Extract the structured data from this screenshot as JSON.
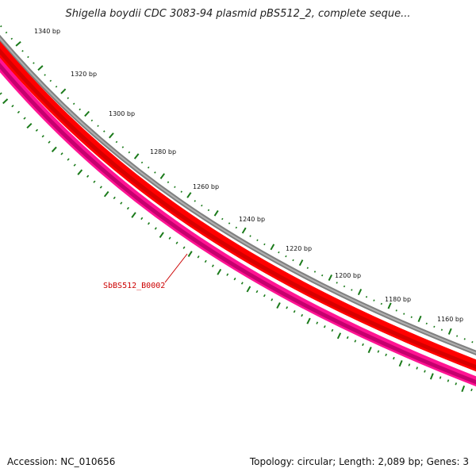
{
  "title": "Shigella boydii CDC 3083-94 plasmid pBS512_2, complete seque...",
  "footer": {
    "accession": "Accession: NC_010656",
    "summary": "Topology: circular; Length: 2,089 bp; Genes: 3"
  },
  "map": {
    "ticks": [
      {
        "label": "1340 bp"
      },
      {
        "label": "1320 bp"
      },
      {
        "label": "1300 bp"
      },
      {
        "label": "1280 bp"
      },
      {
        "label": "1260 bp"
      },
      {
        "label": "1240 bp"
      },
      {
        "label": "1220 bp"
      },
      {
        "label": "1200 bp"
      },
      {
        "label": "1180 bp"
      },
      {
        "label": "1160 bp"
      }
    ],
    "gene_label": "SbBS512_B0002",
    "colors": {
      "backbone": "#808080",
      "gene_forward": "#ff0000",
      "gene_reverse": "#ff1493",
      "ticks": "#1a7a1a",
      "gene_label": "#cc0000"
    }
  }
}
